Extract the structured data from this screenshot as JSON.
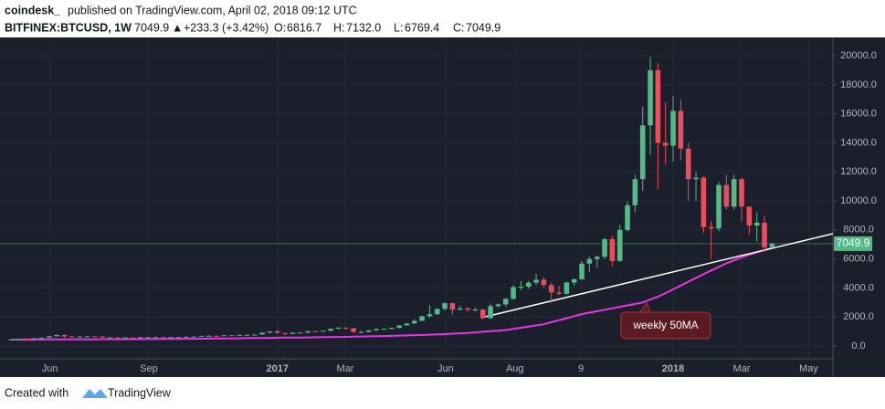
{
  "chart_data": {
    "type": "candlestick",
    "subtitle_author": "coindesk_",
    "subtitle": "published on TradingView.com, April 02, 2018 09:12 UTC",
    "title": "BITFINEX:BTCUSD, 1W",
    "quote": {
      "last": "7049.9",
      "arrow": "▲",
      "change": "+233.3 (+3.42%)",
      "open_label": "O:",
      "open": "6816.7",
      "high_label": "H:",
      "high": "7132.0",
      "low_label": "L:",
      "low": "6769.4",
      "close_label": "C:",
      "close": "7049.9"
    },
    "footer": {
      "text": "Created with",
      "brand": "TradingView"
    },
    "up_color": "#53b987",
    "down_color": "#eb4d5c",
    "open": [
      450,
      455,
      455,
      440,
      530,
      580,
      670,
      760,
      660,
      640,
      650,
      665,
      655,
      575,
      590,
      570,
      580,
      575,
      605,
      605,
      610,
      600,
      610,
      615,
      640,
      655,
      700,
      705,
      700,
      740,
      730,
      765,
      770,
      790,
      920,
      1000,
      900,
      830,
      920,
      920,
      1020,
      1000,
      1050,
      1190,
      1270,
      1230,
      970,
      970,
      1080,
      1170,
      1180,
      1250,
      1420,
      1550,
      1730,
      2050,
      2190,
      2560,
      2950,
      2500,
      2590,
      2500,
      2510,
      1920,
      2750,
      2870,
      3250,
      4060,
      4090,
      4360,
      4570,
      4200,
      3690,
      3600,
      4370,
      4600,
      5680,
      5990,
      6150,
      7360,
      5860,
      8000,
      9700,
      11500,
      15200,
      19000,
      14000,
      13800,
      16200,
      13600,
      11500,
      11600,
      8200,
      8100,
      11100,
      9600,
      11500,
      9600,
      8300,
      8500,
      6816.7
    ],
    "high": [
      470,
      465,
      460,
      535,
      590,
      690,
      780,
      770,
      690,
      670,
      680,
      680,
      660,
      620,
      600,
      590,
      590,
      615,
      615,
      615,
      612,
      620,
      620,
      645,
      660,
      710,
      740,
      715,
      745,
      750,
      770,
      775,
      800,
      930,
      1010,
      1150,
      910,
      930,
      930,
      1030,
      1040,
      1060,
      1200,
      1280,
      1290,
      1240,
      1050,
      1100,
      1190,
      1220,
      1260,
      1430,
      1560,
      1850,
      2090,
      2800,
      2600,
      2990,
      2980,
      2780,
      2650,
      2660,
      2550,
      2930,
      2930,
      3300,
      4180,
      4480,
      4480,
      4980,
      4750,
      4380,
      4150,
      4420,
      4650,
      5850,
      6180,
      6250,
      7460,
      7600,
      8350,
      9950,
      11800,
      16500,
      19900,
      19500,
      16800,
      17200,
      17000,
      14000,
      12000,
      11700,
      8600,
      11300,
      11800,
      11800,
      11600,
      9500,
      9200,
      9000,
      7132
    ],
    "low": [
      440,
      448,
      435,
      435,
      520,
      570,
      660,
      560,
      630,
      630,
      645,
      645,
      560,
      560,
      555,
      565,
      565,
      570,
      595,
      600,
      595,
      595,
      605,
      612,
      630,
      650,
      690,
      680,
      695,
      725,
      725,
      755,
      765,
      785,
      880,
      890,
      760,
      820,
      880,
      910,
      970,
      990,
      1040,
      1170,
      1130,
      910,
      890,
      940,
      1050,
      1150,
      1160,
      1230,
      1410,
      1540,
      1720,
      1950,
      2150,
      2450,
      2150,
      2450,
      2350,
      2400,
      1830,
      1870,
      2650,
      2700,
      3200,
      3850,
      3950,
      4200,
      4000,
      2950,
      3500,
      3550,
      4150,
      4550,
      5100,
      5400,
      6000,
      5500,
      5800,
      7900,
      9200,
      10700,
      13200,
      10800,
      12500,
      12700,
      12800,
      10000,
      10000,
      7800,
      6000,
      7900,
      9400,
      9400,
      8600,
      7700,
      7200,
      6500,
      6769.4
    ],
    "close": [
      455,
      455,
      440,
      530,
      580,
      670,
      760,
      660,
      640,
      650,
      665,
      655,
      575,
      590,
      570,
      580,
      575,
      605,
      605,
      610,
      600,
      610,
      615,
      640,
      655,
      700,
      705,
      700,
      740,
      730,
      765,
      770,
      790,
      920,
      1000,
      900,
      830,
      920,
      920,
      1020,
      1000,
      1050,
      1190,
      1270,
      1230,
      970,
      970,
      1080,
      1170,
      1180,
      1250,
      1420,
      1550,
      1730,
      2050,
      2190,
      2560,
      2950,
      2500,
      2590,
      2500,
      2510,
      1920,
      2750,
      2870,
      3250,
      4060,
      4090,
      4360,
      4570,
      4200,
      3690,
      3600,
      4370,
      4600,
      5680,
      5990,
      6150,
      7360,
      5860,
      8000,
      9700,
      11500,
      15200,
      19000,
      14000,
      13800,
      16200,
      13600,
      11500,
      11600,
      8200,
      8100,
      11100,
      9600,
      11500,
      9600,
      8300,
      8500,
      6800,
      7049.9
    ],
    "ma": {
      "name": "weekly 50MA",
      "color": "#e535e5",
      "values": [
        440,
        442,
        444,
        446,
        448,
        450,
        452,
        454,
        456,
        458,
        460,
        462,
        464,
        466,
        468,
        470,
        472,
        474,
        476,
        478,
        480,
        485,
        490,
        495,
        500,
        505,
        510,
        515,
        520,
        525,
        530,
        538,
        546,
        554,
        562,
        570,
        576,
        582,
        588,
        594,
        600,
        608,
        616,
        624,
        632,
        640,
        652,
        664,
        676,
        688,
        700,
        716,
        732,
        748,
        764,
        780,
        800,
        820,
        847,
        873,
        900,
        940,
        980,
        1020,
        1060,
        1100,
        1180,
        1260,
        1340,
        1420,
        1500,
        1640,
        1780,
        1920,
        2060,
        2200,
        2300,
        2400,
        2500,
        2600,
        2700,
        2800,
        2900,
        3000,
        3200,
        3400,
        3650,
        3900,
        4170,
        4430,
        4700,
        4950,
        5200,
        5450,
        5700,
        5900,
        6100,
        6300,
        6450,
        6600,
        6750
      ]
    },
    "ylim": [
      -1950,
      21200
    ],
    "yticks": [
      {
        "value": 0,
        "label": "0.0"
      },
      {
        "value": 2000,
        "label": "2000.0"
      },
      {
        "value": 4000,
        "label": "4000.0"
      },
      {
        "value": 6000,
        "label": "6000.0"
      },
      {
        "value": 8000,
        "label": "8000.0"
      },
      {
        "value": 10000,
        "label": "10000.0"
      },
      {
        "value": 12000,
        "label": "12000.0"
      },
      {
        "value": 14000,
        "label": "14000.0"
      },
      {
        "value": 16000,
        "label": "16000.0"
      },
      {
        "value": 18000,
        "label": "18000.0"
      },
      {
        "value": 20000,
        "label": "20000.0"
      }
    ],
    "xlim": [
      0,
      108.5
    ],
    "xticks": [
      {
        "value": 5.6,
        "label": "Jun"
      },
      {
        "value": 18.6,
        "label": "Sep"
      },
      {
        "value": 35.5,
        "label": "2017"
      },
      {
        "value": 44.4,
        "label": "Mar"
      },
      {
        "value": 57.6,
        "label": "Jun"
      },
      {
        "value": 66.7,
        "label": "Aug"
      },
      {
        "value": 75.4,
        "label": "9"
      },
      {
        "value": 87.5,
        "label": "2018"
      },
      {
        "value": 96.5,
        "label": "Mar"
      },
      {
        "value": 105.3,
        "label": "May"
      }
    ],
    "grid": true
  }
}
